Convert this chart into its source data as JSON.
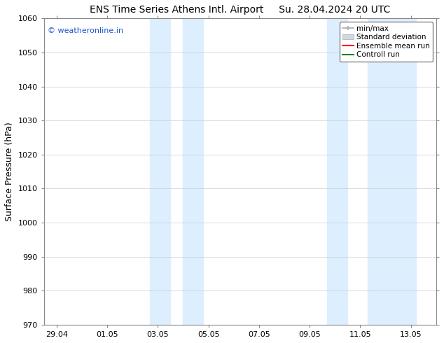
{
  "title_left": "ENS Time Series Athens Intl. Airport",
  "title_right": "Su. 28.04.2024 20 UTC",
  "ylabel": "Surface Pressure (hPa)",
  "xlabel_ticks": [
    "29.04",
    "01.05",
    "03.05",
    "05.05",
    "07.05",
    "09.05",
    "11.05",
    "13.05"
  ],
  "x_tick_positions": [
    0,
    2,
    4,
    6,
    8,
    10,
    12,
    14
  ],
  "xlim": [
    -0.5,
    15.0
  ],
  "ylim": [
    970,
    1060
  ],
  "yticks": [
    970,
    980,
    990,
    1000,
    1010,
    1020,
    1030,
    1040,
    1050,
    1060
  ],
  "watermark": "© weatheronline.in",
  "watermark_color": "#2255cc",
  "background_color": "#ffffff",
  "plot_bg_color": "#ffffff",
  "shaded_regions": [
    {
      "x_start": 3.7,
      "x_end": 4.5,
      "color": "#ddeeff"
    },
    {
      "x_start": 5.0,
      "x_end": 5.8,
      "color": "#ddeeff"
    },
    {
      "x_start": 10.7,
      "x_end": 11.5,
      "color": "#ddeeff"
    },
    {
      "x_start": 12.3,
      "x_end": 14.2,
      "color": "#ddeeff"
    }
  ],
  "legend_items": [
    {
      "label": "min/max",
      "color": "#aaaaaa",
      "type": "errorbar"
    },
    {
      "label": "Standard deviation",
      "color": "#cccccc",
      "type": "band"
    },
    {
      "label": "Ensemble mean run",
      "color": "#ff0000",
      "type": "line"
    },
    {
      "label": "Controll run",
      "color": "#008800",
      "type": "line"
    }
  ],
  "title_fontsize": 10,
  "tick_fontsize": 8,
  "ylabel_fontsize": 9,
  "legend_fontsize": 7.5,
  "watermark_fontsize": 8
}
